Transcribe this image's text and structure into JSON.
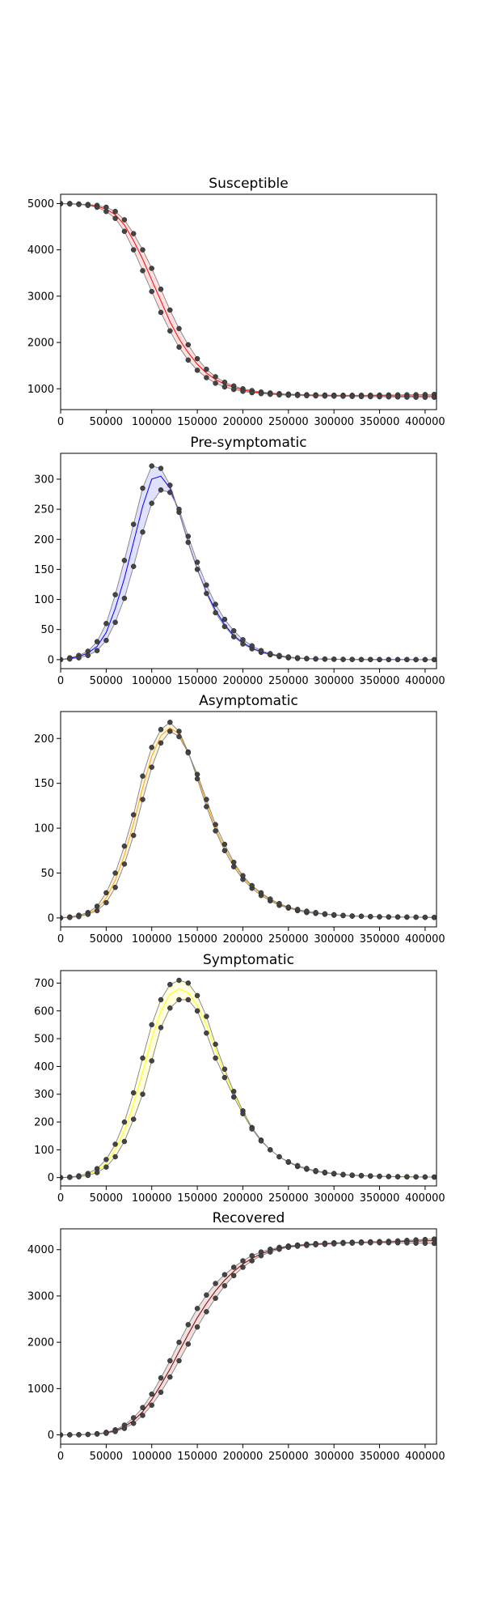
{
  "chart_data": [
    {
      "type": "line",
      "title": "Susceptible",
      "xlabel": "",
      "ylabel": "",
      "xlim": [
        0,
        412500
      ],
      "ylim": [
        550,
        5200
      ],
      "xticks": [
        0,
        50000,
        100000,
        150000,
        200000,
        250000,
        300000,
        350000,
        400000
      ],
      "yticks": [
        1000,
        2000,
        3000,
        4000,
        5000
      ],
      "band_color": "#ff0000",
      "x": [
        0,
        10000,
        20000,
        30000,
        40000,
        50000,
        60000,
        70000,
        80000,
        90000,
        100000,
        110000,
        120000,
        130000,
        140000,
        150000,
        160000,
        170000,
        180000,
        190000,
        200000,
        210000,
        220000,
        230000,
        240000,
        250000,
        260000,
        270000,
        280000,
        290000,
        300000,
        310000,
        320000,
        330000,
        340000,
        350000,
        360000,
        370000,
        380000,
        390000,
        400000,
        410000
      ],
      "series": [
        {
          "role": "upper",
          "values": [
            5000,
            5000,
            4990,
            4980,
            4960,
            4920,
            4830,
            4650,
            4350,
            4000,
            3600,
            3150,
            2700,
            2300,
            1950,
            1650,
            1420,
            1260,
            1140,
            1060,
            1000,
            960,
            930,
            910,
            895,
            885,
            878,
            872,
            868,
            865,
            862,
            860,
            860,
            860,
            862,
            864,
            866,
            868,
            870,
            872,
            875,
            878
          ]
        },
        {
          "role": "mean",
          "values": [
            5000,
            4995,
            4985,
            4970,
            4940,
            4880,
            4760,
            4540,
            4200,
            3800,
            3350,
            2900,
            2450,
            2080,
            1780,
            1530,
            1340,
            1200,
            1100,
            1030,
            975,
            940,
            915,
            898,
            885,
            876,
            870,
            865,
            860,
            858,
            855,
            853,
            852,
            850,
            850,
            850,
            848,
            846,
            845,
            845,
            845,
            845
          ]
        },
        {
          "role": "lower",
          "values": [
            4995,
            4990,
            4980,
            4960,
            4920,
            4830,
            4680,
            4400,
            4000,
            3550,
            3100,
            2650,
            2250,
            1900,
            1620,
            1400,
            1240,
            1120,
            1040,
            985,
            945,
            915,
            895,
            880,
            868,
            860,
            855,
            850,
            845,
            842,
            840,
            838,
            835,
            832,
            830,
            828,
            825,
            822,
            820,
            818,
            816,
            815
          ]
        }
      ]
    },
    {
      "type": "line",
      "title": "Pre-symptomatic",
      "xlabel": "",
      "ylabel": "",
      "xlim": [
        0,
        412500
      ],
      "ylim": [
        -15,
        343
      ],
      "xticks": [
        0,
        50000,
        100000,
        150000,
        200000,
        250000,
        300000,
        350000,
        400000
      ],
      "yticks": [
        0,
        50,
        100,
        150,
        200,
        250,
        300
      ],
      "band_color": "#0000ff",
      "x": [
        0,
        10000,
        20000,
        30000,
        40000,
        50000,
        60000,
        70000,
        80000,
        90000,
        100000,
        110000,
        120000,
        130000,
        140000,
        150000,
        160000,
        170000,
        180000,
        190000,
        200000,
        210000,
        220000,
        230000,
        240000,
        250000,
        260000,
        270000,
        280000,
        290000,
        300000,
        310000,
        320000,
        330000,
        340000,
        350000,
        360000,
        370000,
        380000,
        390000,
        400000,
        410000
      ],
      "series": [
        {
          "role": "upper",
          "values": [
            0,
            3,
            7,
            14,
            30,
            60,
            108,
            165,
            225,
            285,
            322,
            318,
            290,
            245,
            195,
            150,
            110,
            78,
            55,
            38,
            26,
            18,
            12,
            8,
            5,
            3,
            2,
            1.5,
            1,
            0.8,
            0.6,
            0.4,
            0.3,
            0.2,
            0.2,
            0.1,
            0.1,
            0.1,
            0.1,
            0,
            0,
            0
          ]
        },
        {
          "role": "mean",
          "values": [
            0,
            2,
            5,
            11,
            22,
            45,
            85,
            135,
            195,
            255,
            300,
            305,
            285,
            245,
            195,
            150,
            112,
            82,
            58,
            40,
            28,
            19,
            13,
            9,
            6,
            4,
            2.5,
            1.8,
            1.2,
            0.9,
            0.6,
            0.4,
            0.3,
            0.2,
            0.2,
            0.1,
            0.1,
            0.1,
            0.1,
            0,
            0,
            0
          ]
        },
        {
          "role": "lower",
          "values": [
            0,
            1,
            3,
            7,
            15,
            32,
            62,
            102,
            155,
            212,
            260,
            282,
            278,
            250,
            205,
            162,
            124,
            92,
            67,
            48,
            33,
            23,
            15,
            10,
            7,
            4.5,
            3,
            2,
            1.4,
            1,
            0.7,
            0.5,
            0.3,
            0.2,
            0.2,
            0.1,
            0.1,
            0.1,
            0.1,
            0,
            0,
            0
          ]
        }
      ]
    },
    {
      "type": "line",
      "title": "Asymptomatic",
      "xlabel": "",
      "ylabel": "",
      "xlim": [
        0,
        412500
      ],
      "ylim": [
        -10,
        230
      ],
      "xticks": [
        0,
        50000,
        100000,
        150000,
        200000,
        250000,
        300000,
        350000,
        400000
      ],
      "yticks": [
        0,
        50,
        100,
        150,
        200
      ],
      "band_color": "#ffa500",
      "x": [
        0,
        10000,
        20000,
        30000,
        40000,
        50000,
        60000,
        70000,
        80000,
        90000,
        100000,
        110000,
        120000,
        130000,
        140000,
        150000,
        160000,
        170000,
        180000,
        190000,
        200000,
        210000,
        220000,
        230000,
        240000,
        250000,
        260000,
        270000,
        280000,
        290000,
        300000,
        310000,
        320000,
        330000,
        340000,
        350000,
        360000,
        370000,
        380000,
        390000,
        400000,
        410000
      ],
      "series": [
        {
          "role": "upper",
          "values": [
            0,
            1,
            3,
            6,
            13,
            28,
            50,
            80,
            115,
            158,
            190,
            210,
            218,
            208,
            185,
            155,
            124,
            97,
            75,
            57,
            43,
            33,
            25,
            19,
            14,
            11,
            8,
            6,
            5,
            4,
            3,
            2.5,
            2,
            1.8,
            1.5,
            1.2,
            1,
            1,
            0.8,
            0.8,
            0.6,
            0.5
          ]
        },
        {
          "role": "mean",
          "values": [
            0,
            1,
            2,
            5,
            10,
            22,
            42,
            70,
            105,
            145,
            180,
            203,
            212,
            205,
            185,
            158,
            128,
            100,
            78,
            60,
            45,
            35,
            27,
            20,
            15,
            11.5,
            9,
            7,
            5.5,
            4.2,
            3.3,
            2.6,
            2.1,
            1.8,
            1.5,
            1.3,
            1.1,
            1,
            0.9,
            0.8,
            0.7,
            0.6
          ]
        },
        {
          "role": "lower",
          "values": [
            0,
            0.5,
            1.5,
            4,
            8,
            17,
            34,
            60,
            92,
            132,
            168,
            195,
            208,
            202,
            184,
            160,
            132,
            104,
            82,
            62,
            47,
            36,
            28,
            21,
            16,
            12,
            9.5,
            7.5,
            6,
            4.5,
            3.5,
            2.8,
            2.2,
            1.8,
            1.5,
            1.3,
            1.1,
            1,
            0.9,
            0.8,
            0.7,
            0.6
          ]
        }
      ]
    },
    {
      "type": "line",
      "title": "Symptomatic",
      "xlabel": "",
      "ylabel": "",
      "xlim": [
        0,
        412500
      ],
      "ylim": [
        -30,
        745
      ],
      "xticks": [
        0,
        50000,
        100000,
        150000,
        200000,
        250000,
        300000,
        350000,
        400000
      ],
      "yticks": [
        0,
        100,
        200,
        300,
        400,
        500,
        600,
        700
      ],
      "band_color": "#ffff00",
      "x": [
        0,
        10000,
        20000,
        30000,
        40000,
        50000,
        60000,
        70000,
        80000,
        90000,
        100000,
        110000,
        120000,
        130000,
        140000,
        150000,
        160000,
        170000,
        180000,
        190000,
        200000,
        210000,
        220000,
        230000,
        240000,
        250000,
        260000,
        270000,
        280000,
        290000,
        300000,
        310000,
        320000,
        330000,
        340000,
        350000,
        360000,
        370000,
        380000,
        390000,
        400000,
        410000
      ],
      "series": [
        {
          "role": "upper",
          "values": [
            0,
            2,
            6,
            15,
            32,
            65,
            120,
            200,
            305,
            430,
            550,
            640,
            695,
            710,
            700,
            655,
            580,
            480,
            390,
            310,
            240,
            180,
            135,
            100,
            75,
            55,
            40,
            30,
            22,
            17,
            13,
            10,
            8,
            6.5,
            5.2,
            4.3,
            3.5,
            3,
            2.5,
            2.2,
            2,
            1.8
          ]
        },
        {
          "role": "mean",
          "values": [
            0,
            1.5,
            5,
            12,
            25,
            52,
            100,
            170,
            265,
            380,
            500,
            600,
            660,
            680,
            665,
            620,
            550,
            460,
            375,
            300,
            235,
            178,
            134,
            100,
            75,
            56,
            42,
            32,
            24,
            18,
            14,
            11,
            8.5,
            7,
            5.6,
            4.6,
            3.8,
            3.2,
            2.7,
            2.4,
            2.1,
            1.9
          ]
        },
        {
          "role": "lower",
          "values": [
            0,
            1,
            3,
            8,
            18,
            38,
            75,
            130,
            210,
            300,
            420,
            540,
            610,
            640,
            640,
            600,
            520,
            430,
            360,
            290,
            230,
            175,
            132,
            100,
            75,
            57,
            43,
            33,
            25,
            19,
            15,
            11.5,
            9,
            7.5,
            6,
            5,
            4,
            3.4,
            2.9,
            2.5,
            2.2,
            2
          ]
        }
      ]
    },
    {
      "type": "line",
      "title": "Recovered",
      "xlabel": "",
      "ylabel": "",
      "xlim": [
        0,
        412500
      ],
      "ylim": [
        -200,
        4450
      ],
      "xticks": [
        0,
        50000,
        100000,
        150000,
        200000,
        250000,
        300000,
        350000,
        400000
      ],
      "yticks": [
        0,
        1000,
        2000,
        3000,
        4000
      ],
      "band_color": "#800000",
      "x": [
        0,
        10000,
        20000,
        30000,
        40000,
        50000,
        60000,
        70000,
        80000,
        90000,
        100000,
        110000,
        120000,
        130000,
        140000,
        150000,
        160000,
        170000,
        180000,
        190000,
        200000,
        210000,
        220000,
        230000,
        240000,
        250000,
        260000,
        270000,
        280000,
        290000,
        300000,
        310000,
        320000,
        330000,
        340000,
        350000,
        360000,
        370000,
        380000,
        390000,
        400000,
        410000
      ],
      "series": [
        {
          "role": "upper",
          "values": [
            0,
            2,
            5,
            12,
            25,
            55,
            110,
            210,
            370,
            590,
            880,
            1230,
            1600,
            2000,
            2380,
            2730,
            3020,
            3270,
            3460,
            3620,
            3760,
            3870,
            3950,
            4010,
            4050,
            4080,
            4100,
            4120,
            4130,
            4140,
            4150,
            4155,
            4160,
            4165,
            4170,
            4175,
            4180,
            4190,
            4200,
            4210,
            4220,
            4230
          ]
        },
        {
          "role": "mean",
          "values": [
            0,
            1.5,
            4,
            10,
            20,
            45,
            90,
            175,
            310,
            500,
            760,
            1080,
            1420,
            1800,
            2170,
            2530,
            2840,
            3110,
            3340,
            3530,
            3690,
            3810,
            3910,
            3980,
            4030,
            4065,
            4090,
            4105,
            4120,
            4130,
            4140,
            4150,
            4155,
            4160,
            4165,
            4168,
            4170,
            4175,
            4180,
            4185,
            4190,
            4195
          ]
        },
        {
          "role": "lower",
          "values": [
            0,
            1,
            3,
            8,
            16,
            35,
            72,
            140,
            250,
            420,
            640,
            920,
            1250,
            1600,
            1960,
            2330,
            2660,
            2950,
            3220,
            3440,
            3620,
            3760,
            3870,
            3950,
            4010,
            4050,
            4075,
            4090,
            4105,
            4115,
            4125,
            4135,
            4140,
            4145,
            4150,
            4150,
            4150,
            4148,
            4145,
            4140,
            4138,
            4135
          ]
        }
      ]
    }
  ]
}
